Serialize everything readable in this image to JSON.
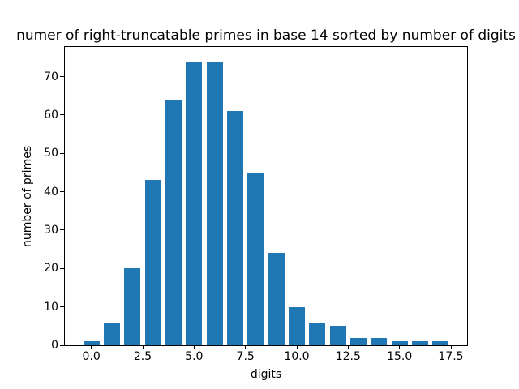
{
  "chart_data": {
    "type": "bar",
    "title": "numer of right-truncatable primes in base 14 sorted by number of digits",
    "xlabel": "digits",
    "ylabel": "number of primes",
    "x": [
      0,
      1,
      2,
      3,
      4,
      5,
      6,
      7,
      8,
      9,
      10,
      11,
      12,
      13,
      14,
      15,
      16,
      17
    ],
    "values": [
      1,
      6,
      20,
      43,
      64,
      74,
      74,
      61,
      45,
      24,
      10,
      6,
      5,
      2,
      2,
      1,
      1,
      1
    ],
    "bar_color": "#1f77b4",
    "bar_width": 0.8,
    "xlim": [
      -1.29,
      18.29
    ],
    "ylim": [
      0,
      77.7
    ],
    "xtick_values": [
      0,
      2.5,
      5,
      7.5,
      10,
      12.5,
      15,
      17.5
    ],
    "xtick_labels": [
      "0.0",
      "2.5",
      "5.0",
      "7.5",
      "10.0",
      "12.5",
      "15.0",
      "17.5"
    ],
    "ytick_values": [
      0,
      10,
      20,
      30,
      40,
      50,
      60,
      70
    ],
    "ytick_labels": [
      "0",
      "10",
      "20",
      "30",
      "40",
      "50",
      "60",
      "70"
    ],
    "grid": false,
    "legend": "none",
    "background_color": "#ffffff",
    "spine_color": "#000000",
    "text_color": "#000000"
  }
}
